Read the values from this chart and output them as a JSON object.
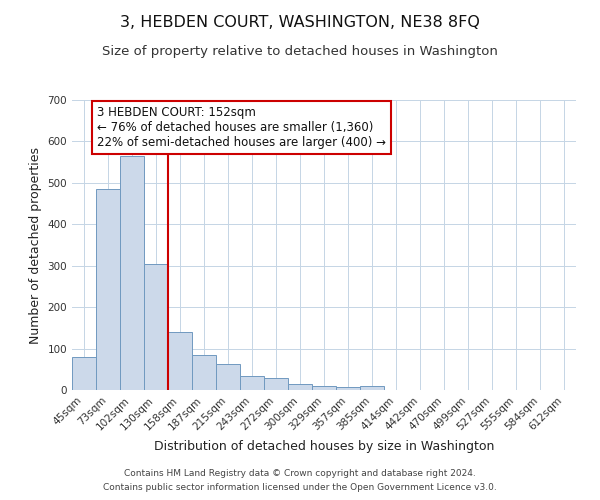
{
  "title": "3, HEBDEN COURT, WASHINGTON, NE38 8FQ",
  "subtitle": "Size of property relative to detached houses in Washington",
  "xlabel": "Distribution of detached houses by size in Washington",
  "ylabel": "Number of detached properties",
  "footer_lines": [
    "Contains HM Land Registry data © Crown copyright and database right 2024.",
    "Contains public sector information licensed under the Open Government Licence v3.0."
  ],
  "bin_labels": [
    "45sqm",
    "73sqm",
    "102sqm",
    "130sqm",
    "158sqm",
    "187sqm",
    "215sqm",
    "243sqm",
    "272sqm",
    "300sqm",
    "329sqm",
    "357sqm",
    "385sqm",
    "414sqm",
    "442sqm",
    "470sqm",
    "499sqm",
    "527sqm",
    "555sqm",
    "584sqm",
    "612sqm"
  ],
  "bar_heights": [
    80,
    485,
    565,
    305,
    140,
    85,
    63,
    35,
    30,
    15,
    10,
    8,
    10,
    0,
    0,
    0,
    0,
    0,
    0,
    0,
    0
  ],
  "bar_color": "#ccd9ea",
  "bar_edge_color": "#7099c0",
  "vline_x_index": 4,
  "vline_color": "#cc0000",
  "ylim": [
    0,
    700
  ],
  "yticks": [
    0,
    100,
    200,
    300,
    400,
    500,
    600,
    700
  ],
  "annotation_title": "3 HEBDEN COURT: 152sqm",
  "annotation_line1": "← 76% of detached houses are smaller (1,360)",
  "annotation_line2": "22% of semi-detached houses are larger (400) →",
  "annotation_box_color": "#ffffff",
  "annotation_box_edge": "#cc0000",
  "bg_color": "#ffffff",
  "grid_color": "#c5d5e5",
  "title_fontsize": 11.5,
  "subtitle_fontsize": 9.5,
  "axis_label_fontsize": 9,
  "tick_fontsize": 7.5,
  "annotation_fontsize": 8.5,
  "footer_fontsize": 6.5
}
